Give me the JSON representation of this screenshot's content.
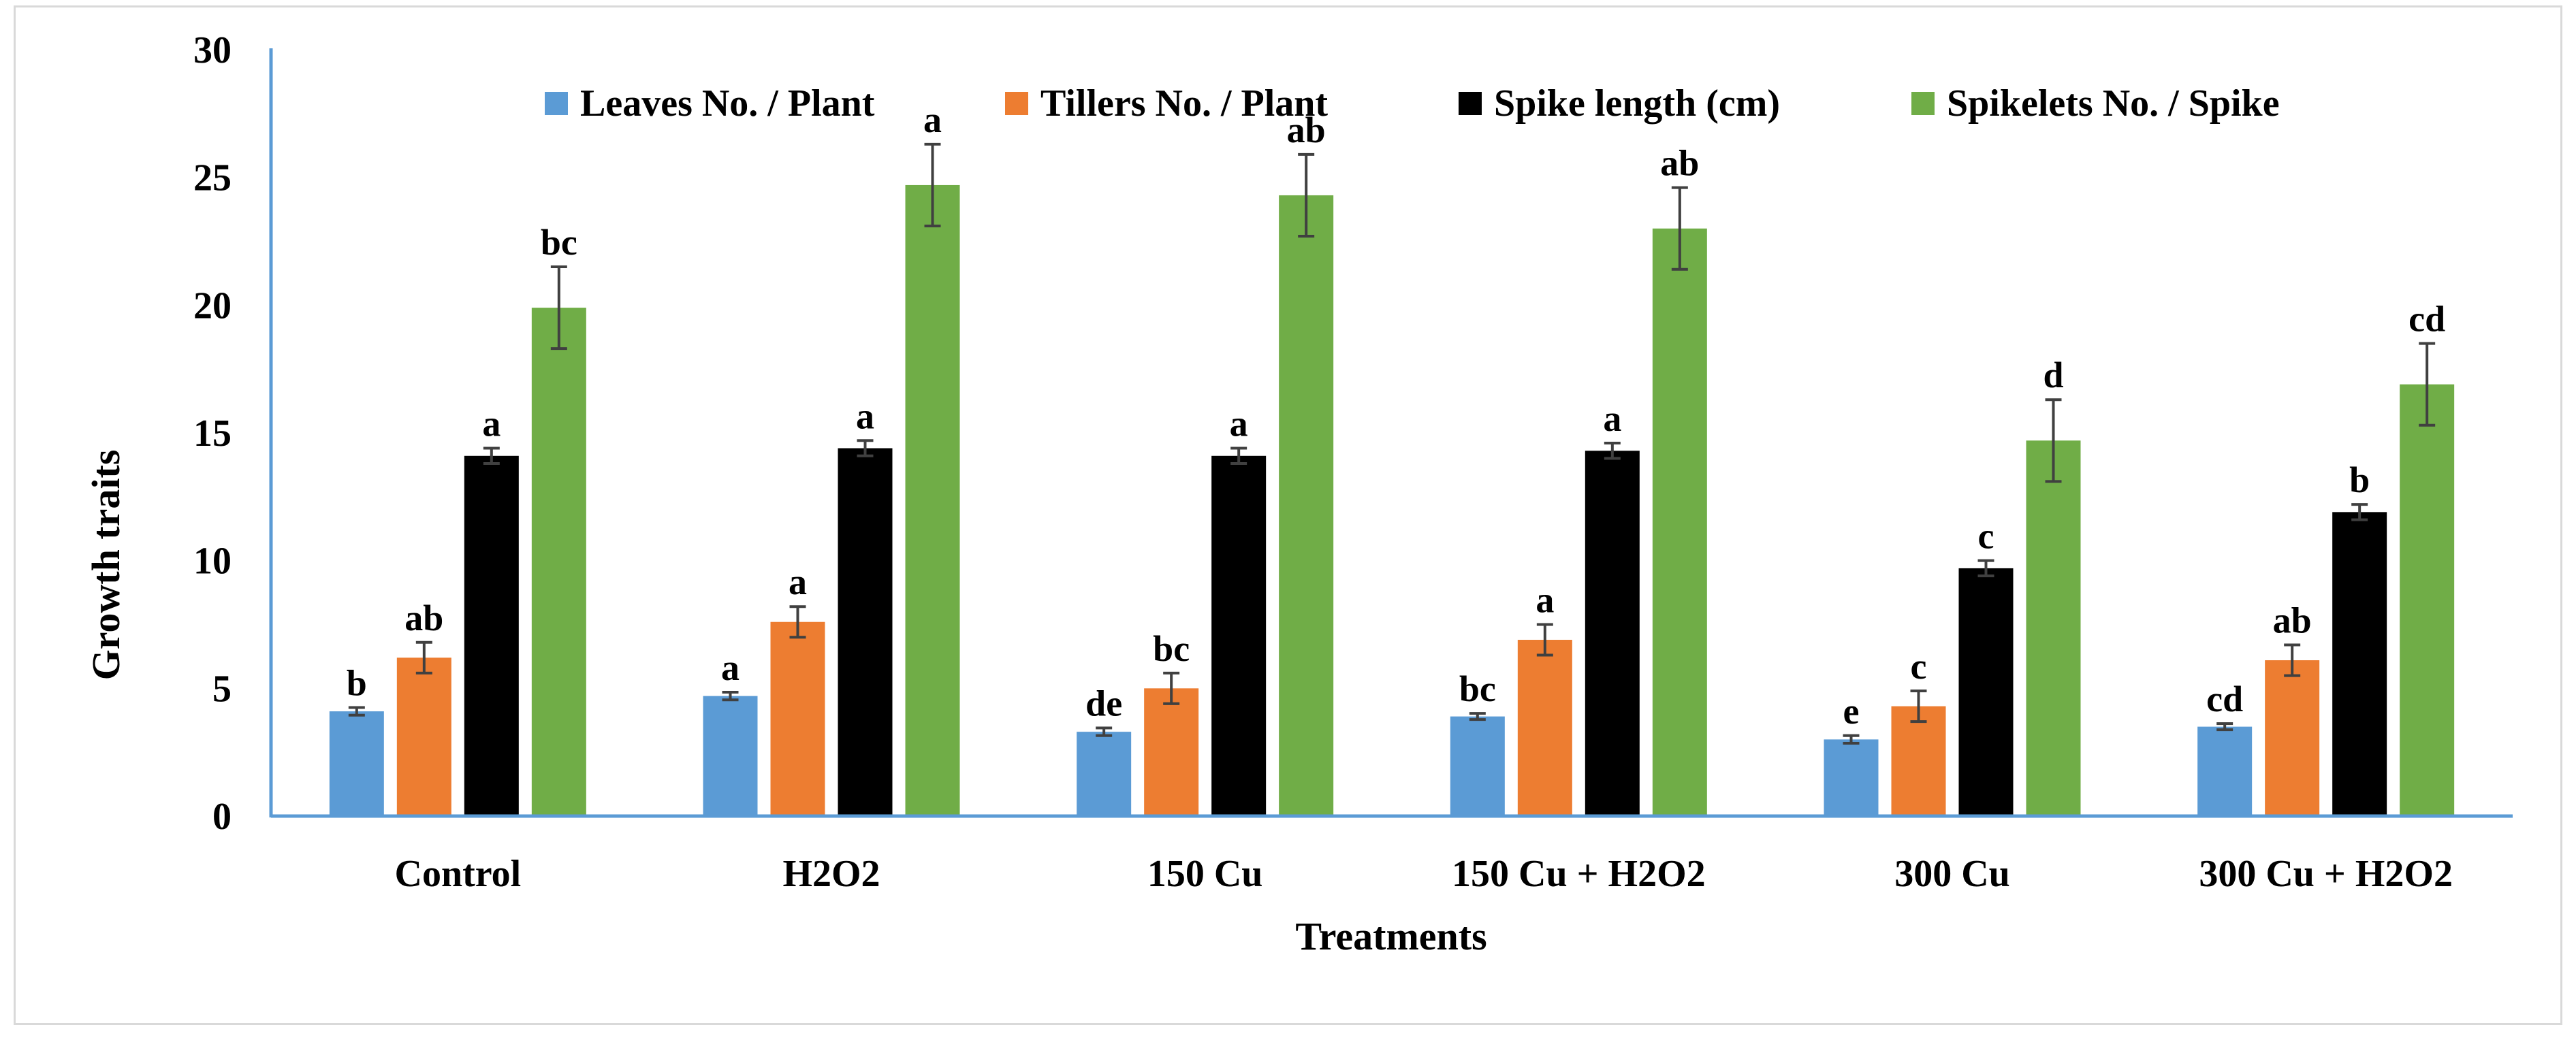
{
  "chart_data": {
    "type": "bar",
    "title": "",
    "xlabel": "Treatments",
    "ylabel": "Growth  traits",
    "ylim": [
      0,
      30
    ],
    "yticks": [
      0,
      5,
      10,
      15,
      20,
      25,
      30
    ],
    "grid": false,
    "legend_position": "top",
    "categories": [
      "Control",
      "H2O2",
      "150 Cu",
      "150 Cu + H2O2",
      "300 Cu",
      "300 Cu + H2O2"
    ],
    "series": [
      {
        "name": "Leaves No. / Plant",
        "color": "#5b9bd5",
        "values": [
          4.1,
          4.7,
          3.3,
          3.9,
          3.0,
          3.5
        ],
        "errors": [
          0.15,
          0.15,
          0.15,
          0.12,
          0.15,
          0.12
        ],
        "labels": [
          "b",
          "a",
          "de",
          "bc",
          "e",
          "cd"
        ]
      },
      {
        "name": "Tillers No. / Plant",
        "color": "#ed7d31",
        "values": [
          6.2,
          7.6,
          5.0,
          6.9,
          4.3,
          6.1
        ],
        "errors": [
          0.6,
          0.6,
          0.6,
          0.6,
          0.6,
          0.6
        ],
        "labels": [
          "ab",
          "a",
          "bc",
          "a",
          "c",
          "ab"
        ]
      },
      {
        "name": "Spike length (cm)",
        "color": "#000000",
        "values": [
          14.1,
          14.4,
          14.1,
          14.3,
          9.7,
          11.9
        ],
        "errors": [
          0.3,
          0.3,
          0.3,
          0.3,
          0.3,
          0.3
        ],
        "labels": [
          "a",
          "a",
          "a",
          "a",
          "c",
          "b"
        ]
      },
      {
        "name": "Spikelets No. / Spike",
        "color": "#70ad47",
        "values": [
          19.9,
          24.7,
          24.3,
          23.0,
          14.7,
          16.9
        ],
        "errors": [
          1.6,
          1.6,
          1.6,
          1.6,
          1.6,
          1.6
        ],
        "labels": [
          "bc",
          "a",
          "ab",
          "ab",
          "d",
          "cd"
        ]
      }
    ]
  },
  "colors": {
    "axis": "#5b9bd5",
    "error_bar": "#404040",
    "frame": "#d9d9d9"
  }
}
